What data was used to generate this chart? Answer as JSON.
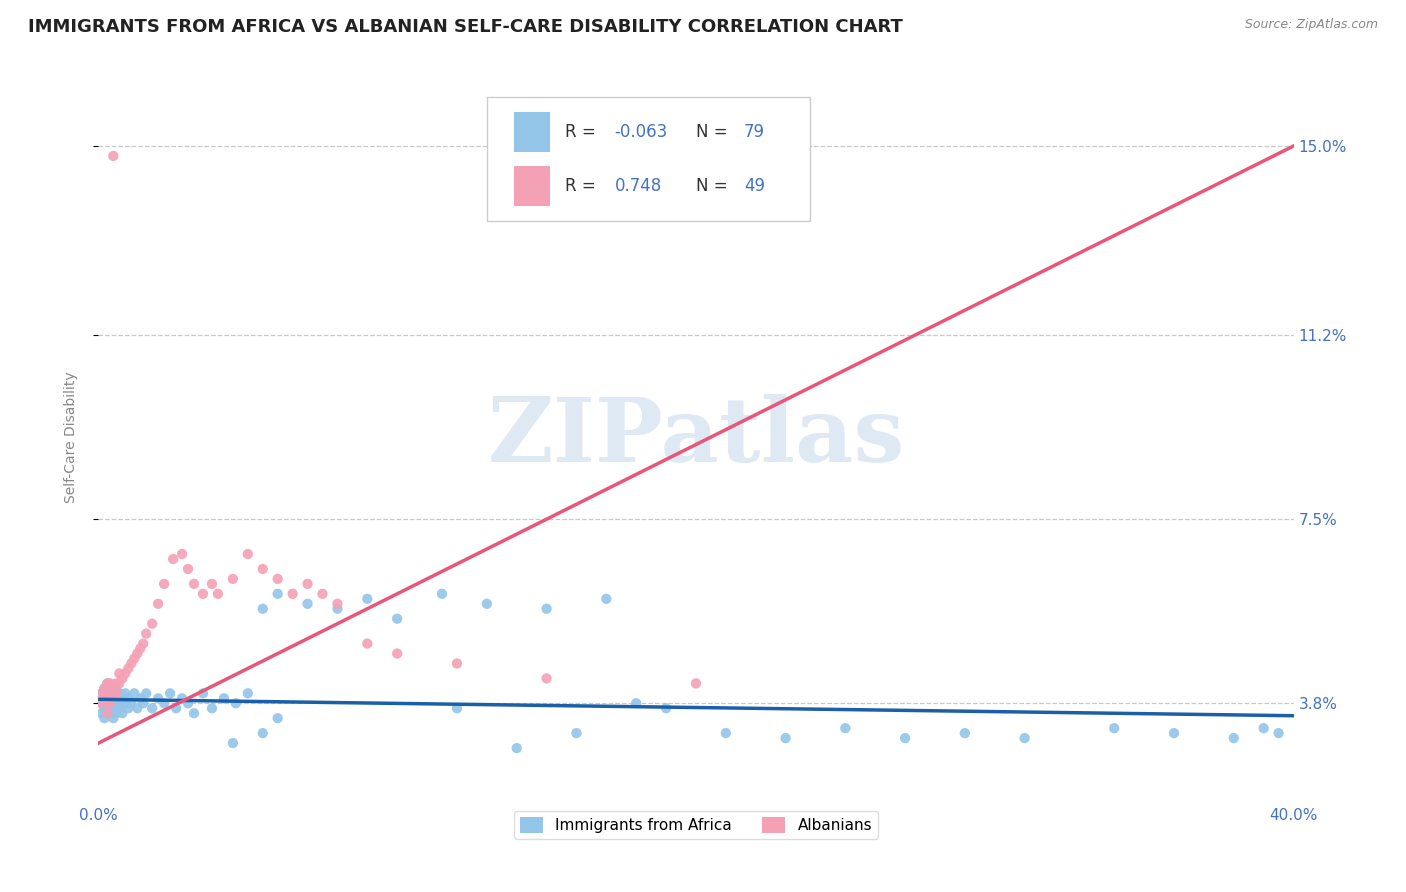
{
  "title": "IMMIGRANTS FROM AFRICA VS ALBANIAN SELF-CARE DISABILITY CORRELATION CHART",
  "source": "Source: ZipAtlas.com",
  "ylabel": "Self-Care Disability",
  "xlim": [
    0.0,
    0.4
  ],
  "ylim": [
    0.018,
    0.165
  ],
  "xtick_left_label": "0.0%",
  "xtick_right_label": "40.0%",
  "ytick_values": [
    0.038,
    0.075,
    0.112,
    0.15
  ],
  "ytick_labels": [
    "3.8%",
    "7.5%",
    "11.2%",
    "15.0%"
  ],
  "blue_color": "#92C5E8",
  "pink_color": "#F4A0B5",
  "blue_line_color": "#1A5FA8",
  "pink_line_color": "#E8567A",
  "grid_color": "#C8C8C8",
  "R_blue": -0.063,
  "N_blue": 79,
  "R_pink": 0.748,
  "N_pink": 49,
  "watermark": "ZIPatlas",
  "watermark_color": "#C5D8EC",
  "title_fontsize": 13,
  "axis_label_fontsize": 10,
  "tick_fontsize": 11,
  "tick_color": "#4472C4",
  "legend_label1": "Immigrants from Africa",
  "legend_label2": "Albanians",
  "blue_line_start_y": 0.0388,
  "blue_line_end_y": 0.0355,
  "pink_line_start_y": 0.03,
  "pink_line_end_y": 0.15,
  "blue_scatter_x": [
    0.001,
    0.001,
    0.001,
    0.002,
    0.002,
    0.002,
    0.002,
    0.003,
    0.003,
    0.003,
    0.003,
    0.003,
    0.004,
    0.004,
    0.004,
    0.005,
    0.005,
    0.005,
    0.005,
    0.006,
    0.006,
    0.006,
    0.007,
    0.007,
    0.007,
    0.008,
    0.008,
    0.009,
    0.009,
    0.01,
    0.01,
    0.011,
    0.012,
    0.013,
    0.014,
    0.015,
    0.016,
    0.018,
    0.02,
    0.022,
    0.024,
    0.026,
    0.028,
    0.03,
    0.032,
    0.035,
    0.038,
    0.042,
    0.046,
    0.05,
    0.055,
    0.06,
    0.07,
    0.08,
    0.09,
    0.1,
    0.115,
    0.13,
    0.15,
    0.17,
    0.19,
    0.21,
    0.23,
    0.25,
    0.27,
    0.29,
    0.31,
    0.34,
    0.36,
    0.38,
    0.39,
    0.395,
    0.06,
    0.055,
    0.045,
    0.18,
    0.16,
    0.14,
    0.12
  ],
  "blue_scatter_y": [
    0.038,
    0.04,
    0.036,
    0.039,
    0.037,
    0.041,
    0.035,
    0.04,
    0.038,
    0.036,
    0.042,
    0.037,
    0.039,
    0.041,
    0.036,
    0.038,
    0.04,
    0.037,
    0.035,
    0.039,
    0.041,
    0.036,
    0.038,
    0.04,
    0.037,
    0.039,
    0.036,
    0.038,
    0.04,
    0.037,
    0.039,
    0.038,
    0.04,
    0.037,
    0.039,
    0.038,
    0.04,
    0.037,
    0.039,
    0.038,
    0.04,
    0.037,
    0.039,
    0.038,
    0.036,
    0.04,
    0.037,
    0.039,
    0.038,
    0.04,
    0.057,
    0.06,
    0.058,
    0.057,
    0.059,
    0.055,
    0.06,
    0.058,
    0.057,
    0.059,
    0.037,
    0.032,
    0.031,
    0.033,
    0.031,
    0.032,
    0.031,
    0.033,
    0.032,
    0.031,
    0.033,
    0.032,
    0.035,
    0.032,
    0.03,
    0.038,
    0.032,
    0.029,
    0.037
  ],
  "pink_scatter_x": [
    0.001,
    0.001,
    0.002,
    0.002,
    0.003,
    0.003,
    0.003,
    0.004,
    0.004,
    0.004,
    0.005,
    0.005,
    0.006,
    0.006,
    0.007,
    0.007,
    0.008,
    0.009,
    0.01,
    0.011,
    0.012,
    0.013,
    0.014,
    0.015,
    0.016,
    0.018,
    0.02,
    0.022,
    0.025,
    0.028,
    0.03,
    0.032,
    0.035,
    0.038,
    0.04,
    0.045,
    0.05,
    0.055,
    0.06,
    0.065,
    0.07,
    0.075,
    0.08,
    0.09,
    0.1,
    0.12,
    0.15,
    0.2,
    0.005
  ],
  "pink_scatter_y": [
    0.038,
    0.04,
    0.039,
    0.041,
    0.038,
    0.042,
    0.036,
    0.04,
    0.038,
    0.042,
    0.04,
    0.041,
    0.042,
    0.04,
    0.042,
    0.044,
    0.043,
    0.044,
    0.045,
    0.046,
    0.047,
    0.048,
    0.049,
    0.05,
    0.052,
    0.054,
    0.058,
    0.062,
    0.067,
    0.068,
    0.065,
    0.062,
    0.06,
    0.062,
    0.06,
    0.063,
    0.068,
    0.065,
    0.063,
    0.06,
    0.062,
    0.06,
    0.058,
    0.05,
    0.048,
    0.046,
    0.043,
    0.042,
    0.148
  ]
}
